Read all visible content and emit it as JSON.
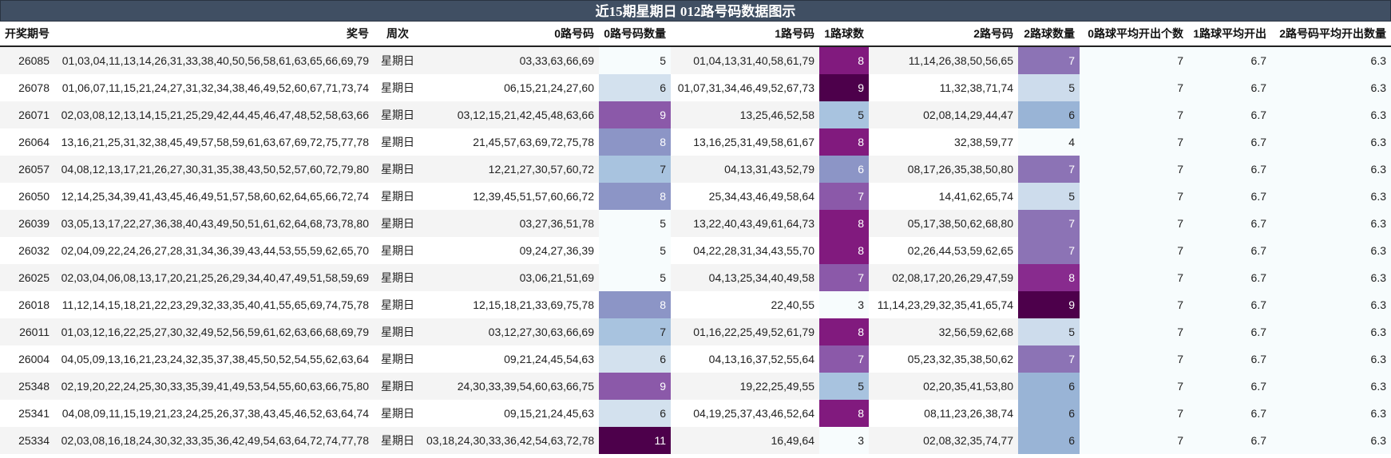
{
  "title": "近15期星期日 012路号码数据图示",
  "headers": [
    "开奖期号",
    "奖号",
    "周次",
    "0路号码",
    "0路号码数量",
    "1路号码",
    "1路球数",
    "2路号码",
    "2路球数量",
    "0路球平均开出个数",
    "1路球平均开出",
    "2路号码平均开出数量"
  ],
  "colors": {
    "title_bg": "#404f63",
    "scale": {
      "3": "#f7fcfd",
      "4": "#f7fcfd",
      "5": "#f7fcfd",
      "6": "#d3e1ee",
      "7": "#a8c3df",
      "8": "#8c95c6",
      "9": "#8b59a9",
      "11": "#4d004b"
    }
  },
  "rows": [
    {
      "issue": "26085",
      "numbers": "01,03,04,11,13,14,26,31,33,38,40,50,56,58,61,63,65,66,69,79",
      "week": "星期日",
      "r0": "03,33,63,66,69",
      "c0": "5",
      "r1": "01,04,13,31,40,58,61,79",
      "c1": "8",
      "r2": "11,14,26,38,50,56,65",
      "c2": "7",
      "a0": "7",
      "a1": "6.7",
      "a2": "6.3"
    },
    {
      "issue": "26078",
      "numbers": "01,06,07,11,15,21,24,27,31,32,34,38,46,49,52,60,67,71,73,74",
      "week": "星期日",
      "r0": "06,15,21,24,27,60",
      "c0": "6",
      "r1": "01,07,31,34,46,49,52,67,73",
      "c1": "9",
      "r2": "11,32,38,71,74",
      "c2": "5",
      "a0": "7",
      "a1": "6.7",
      "a2": "6.3"
    },
    {
      "issue": "26071",
      "numbers": "02,03,08,12,13,14,15,21,25,29,42,44,45,46,47,48,52,58,63,66",
      "week": "星期日",
      "r0": "03,12,15,21,42,45,48,63,66",
      "c0": "9",
      "r1": "13,25,46,52,58",
      "c1": "5",
      "r2": "02,08,14,29,44,47",
      "c2": "6",
      "a0": "7",
      "a1": "6.7",
      "a2": "6.3"
    },
    {
      "issue": "26064",
      "numbers": "13,16,21,25,31,32,38,45,49,57,58,59,61,63,67,69,72,75,77,78",
      "week": "星期日",
      "r0": "21,45,57,63,69,72,75,78",
      "c0": "8",
      "r1": "13,16,25,31,49,58,61,67",
      "c1": "8",
      "r2": "32,38,59,77",
      "c2": "4",
      "a0": "7",
      "a1": "6.7",
      "a2": "6.3"
    },
    {
      "issue": "26057",
      "numbers": "04,08,12,13,17,21,26,27,30,31,35,38,43,50,52,57,60,72,79,80",
      "week": "星期日",
      "r0": "12,21,27,30,57,60,72",
      "c0": "7",
      "r1": "04,13,31,43,52,79",
      "c1": "6",
      "r2": "08,17,26,35,38,50,80",
      "c2": "7",
      "a0": "7",
      "a1": "6.7",
      "a2": "6.3"
    },
    {
      "issue": "26050",
      "numbers": "12,14,25,34,39,41,43,45,46,49,51,57,58,60,62,64,65,66,72,74",
      "week": "星期日",
      "r0": "12,39,45,51,57,60,66,72",
      "c0": "8",
      "r1": "25,34,43,46,49,58,64",
      "c1": "7",
      "r2": "14,41,62,65,74",
      "c2": "5",
      "a0": "7",
      "a1": "6.7",
      "a2": "6.3"
    },
    {
      "issue": "26039",
      "numbers": "03,05,13,17,22,27,36,38,40,43,49,50,51,61,62,64,68,73,78,80",
      "week": "星期日",
      "r0": "03,27,36,51,78",
      "c0": "5",
      "r1": "13,22,40,43,49,61,64,73",
      "c1": "8",
      "r2": "05,17,38,50,62,68,80",
      "c2": "7",
      "a0": "7",
      "a1": "6.7",
      "a2": "6.3"
    },
    {
      "issue": "26032",
      "numbers": "02,04,09,22,24,26,27,28,31,34,36,39,43,44,53,55,59,62,65,70",
      "week": "星期日",
      "r0": "09,24,27,36,39",
      "c0": "5",
      "r1": "04,22,28,31,34,43,55,70",
      "c1": "8",
      "r2": "02,26,44,53,59,62,65",
      "c2": "7",
      "a0": "7",
      "a1": "6.7",
      "a2": "6.3"
    },
    {
      "issue": "26025",
      "numbers": "02,03,04,06,08,13,17,20,21,25,26,29,34,40,47,49,51,58,59,69",
      "week": "星期日",
      "r0": "03,06,21,51,69",
      "c0": "5",
      "r1": "04,13,25,34,40,49,58",
      "c1": "7",
      "r2": "02,08,17,20,26,29,47,59",
      "c2": "8",
      "a0": "7",
      "a1": "6.7",
      "a2": "6.3"
    },
    {
      "issue": "26018",
      "numbers": "11,12,14,15,18,21,22,23,29,32,33,35,40,41,55,65,69,74,75,78",
      "week": "星期日",
      "r0": "12,15,18,21,33,69,75,78",
      "c0": "8",
      "r1": "22,40,55",
      "c1": "3",
      "r2": "11,14,23,29,32,35,41,65,74",
      "c2": "9",
      "a0": "7",
      "a1": "6.7",
      "a2": "6.3"
    },
    {
      "issue": "26011",
      "numbers": "01,03,12,16,22,25,27,30,32,49,52,56,59,61,62,63,66,68,69,79",
      "week": "星期日",
      "r0": "03,12,27,30,63,66,69",
      "c0": "7",
      "r1": "01,16,22,25,49,52,61,79",
      "c1": "8",
      "r2": "32,56,59,62,68",
      "c2": "5",
      "a0": "7",
      "a1": "6.7",
      "a2": "6.3"
    },
    {
      "issue": "26004",
      "numbers": "04,05,09,13,16,21,23,24,32,35,37,38,45,50,52,54,55,62,63,64",
      "week": "星期日",
      "r0": "09,21,24,45,54,63",
      "c0": "6",
      "r1": "04,13,16,37,52,55,64",
      "c1": "7",
      "r2": "05,23,32,35,38,50,62",
      "c2": "7",
      "a0": "7",
      "a1": "6.7",
      "a2": "6.3"
    },
    {
      "issue": "25348",
      "numbers": "02,19,20,22,24,25,30,33,35,39,41,49,53,54,55,60,63,66,75,80",
      "week": "星期日",
      "r0": "24,30,33,39,54,60,63,66,75",
      "c0": "9",
      "r1": "19,22,25,49,55",
      "c1": "5",
      "r2": "02,20,35,41,53,80",
      "c2": "6",
      "a0": "7",
      "a1": "6.7",
      "a2": "6.3"
    },
    {
      "issue": "25341",
      "numbers": "04,08,09,11,15,19,21,23,24,25,26,37,38,43,45,46,52,63,64,74",
      "week": "星期日",
      "r0": "09,15,21,24,45,63",
      "c0": "6",
      "r1": "04,19,25,37,43,46,52,64",
      "c1": "8",
      "r2": "08,11,23,26,38,74",
      "c2": "6",
      "a0": "7",
      "a1": "6.7",
      "a2": "6.3"
    },
    {
      "issue": "25334",
      "numbers": "02,03,08,16,18,24,30,32,33,35,36,42,49,54,63,64,72,74,77,78",
      "week": "星期日",
      "r0": "03,18,24,30,33,36,42,54,63,72,78",
      "c0": "11",
      "r1": "16,49,64",
      "c1": "3",
      "r2": "02,08,32,35,74,77",
      "c2": "6",
      "a0": "7",
      "a1": "6.7",
      "a2": "6.3"
    }
  ],
  "heat_colors": {
    "c0": {
      "5": "#f7fcfd",
      "6": "#d3e1ee",
      "7": "#a8c3df",
      "8": "#8c95c6",
      "9": "#8b59a9",
      "11": "#4d004b"
    },
    "c1": {
      "3": "#f7fcfd",
      "5": "#a8c3df",
      "6": "#8c95c6",
      "7": "#8b59a9",
      "8": "#811a7e",
      "9": "#4d004b"
    },
    "c2": {
      "4": "#f7fcfd",
      "5": "#cddcec",
      "6": "#99b4d6",
      "7": "#8c73b5",
      "8": "#882b8e",
      "9": "#4d004b"
    }
  }
}
